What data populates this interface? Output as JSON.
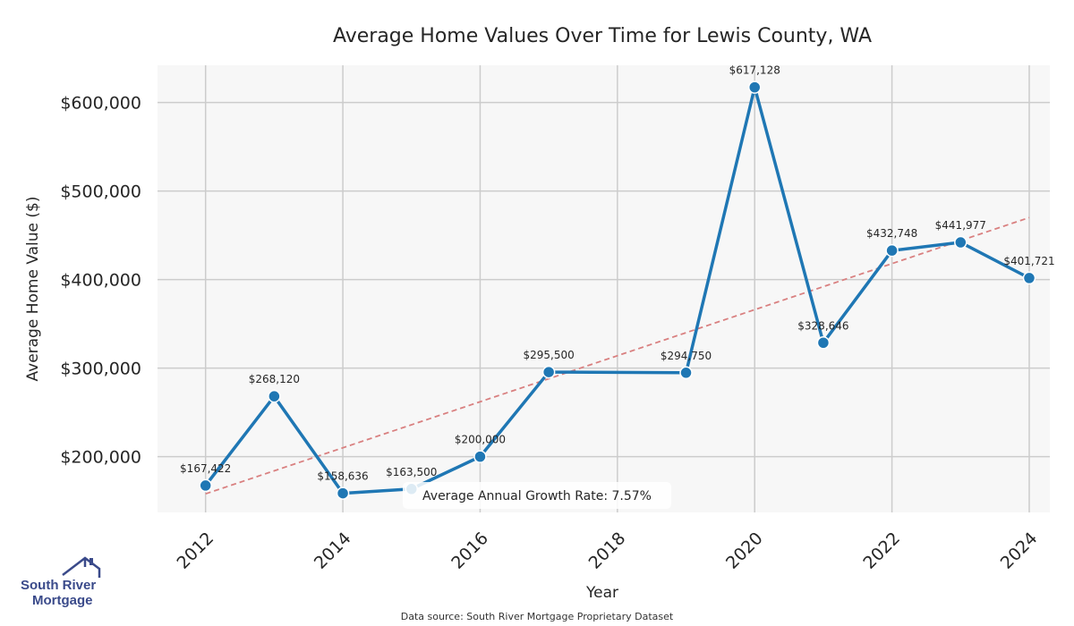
{
  "chart_data": {
    "type": "line",
    "title": "Average Home Values Over Time for Lewis County, WA",
    "xlabel": "Year",
    "ylabel": "Average Home Value ($)",
    "x": [
      2012,
      2013,
      2014,
      2015,
      2016,
      2017,
      2019,
      2020,
      2021,
      2022,
      2023,
      2024
    ],
    "series": [
      {
        "name": "Average Home Value",
        "values": [
          167422,
          268120,
          158636,
          163500,
          200000,
          295500,
          294750,
          617128,
          328646,
          432748,
          441977,
          401721
        ],
        "labels": [
          "$167,422",
          "$268,120",
          "$158,636",
          "$163,500",
          "$200,000",
          "$295,500",
          "$294,750",
          "$617,128",
          "$328,646",
          "$432,748",
          "$441,977",
          "$401,721"
        ]
      }
    ],
    "trendline": {
      "x": [
        2012,
        2024
      ],
      "values": [
        158000,
        470000
      ]
    },
    "xlim": [
      2011.3,
      2024.3
    ],
    "ylim": [
      137000,
      642000
    ],
    "xticks": [
      2012,
      2014,
      2016,
      2018,
      2020,
      2022,
      2024
    ],
    "xtick_labels": [
      "2012",
      "2014",
      "2016",
      "2018",
      "2020",
      "2022",
      "2024"
    ],
    "yticks": [
      200000,
      300000,
      400000,
      500000,
      600000
    ],
    "ytick_labels": [
      "$200,000",
      "$300,000",
      "$400,000",
      "$500,000",
      "$600,000"
    ],
    "annotation": "Average Annual Growth Rate: 7.57%",
    "grid": true,
    "colors": {
      "line": "#1f77b4",
      "trend": "#d98080",
      "plot_bg": "#f7f7f7",
      "grid": "#cccccc"
    }
  },
  "footer": {
    "source": "Data source: South River Mortgage Proprietary Dataset"
  },
  "logo": {
    "line1": "South River",
    "line2": "Mortgage",
    "color": "#3a4a8a"
  }
}
